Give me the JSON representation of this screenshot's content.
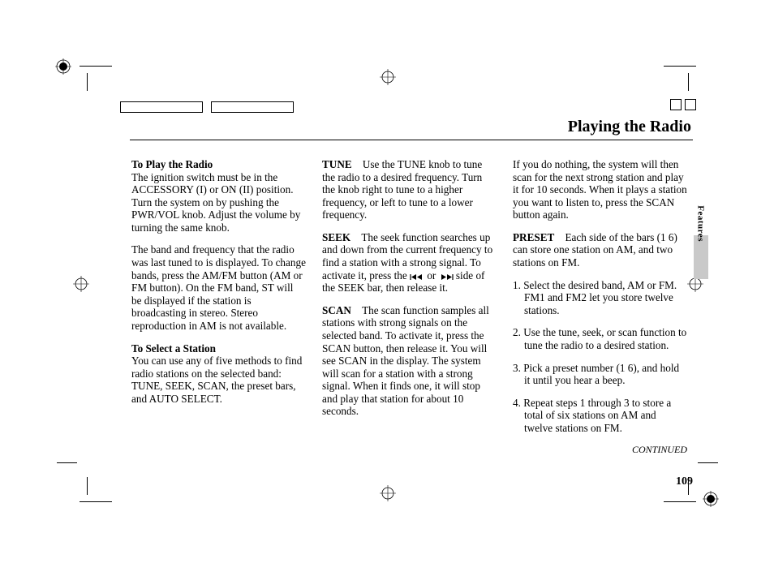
{
  "header": {
    "title": "Playing the Radio"
  },
  "side_tab": {
    "label": "Features"
  },
  "page_number": "109",
  "continued_label": "CONTINUED",
  "col1": {
    "h1": "To Play the Radio",
    "p1": "The ignition switch must be in the ACCESSORY (I) or ON (II) position. Turn the system on by pushing the PWR/VOL knob. Adjust the volume by turning the same knob.",
    "p2": "The band and frequency that the radio was last tuned to is displayed. To change bands, press the AM/FM button (AM or FM button). On the FM band, ST will be displayed if the station is broadcasting in stereo. Stereo reproduction in AM is not available.",
    "h2": "To Select a Station",
    "p3": "You can use any of five methods to find radio stations on the selected band: TUNE, SEEK, SCAN, the preset bars, and AUTO SELECT."
  },
  "col2": {
    "tune_label": "TUNE",
    "tune_body": "Use the TUNE knob to tune the radio to a desired frequency. Turn the knob right to tune to a higher frequency, or left to tune to a lower frequency.",
    "seek_label": "SEEK",
    "seek_body_a": "The seek function searches up and down from the current frequency to find a station with a strong signal. To activate it, press the ",
    "seek_or": " or ",
    "seek_body_b": " side of the SEEK bar, then release it.",
    "scan_label": "SCAN",
    "scan_body": "The scan function samples all stations with strong signals on the selected band. To activate it, press the SCAN button, then release it. You will see SCAN in the display. The system will scan for a station with a strong signal. When it finds one, it will stop and play that station for about 10 seconds."
  },
  "col3": {
    "p1": "If you do nothing, the system will then scan for the next strong station and play it for 10 seconds. When it plays a station you want to listen to, press the SCAN button again.",
    "preset_label": "PRESET",
    "preset_body": "Each side of the bars (1   6) can store one station on AM, and two stations on FM.",
    "li1": "Select the desired band, AM or FM. FM1 and FM2 let you store twelve stations.",
    "li2": "Use the tune, seek, or scan function to tune the radio to a desired station.",
    "li3": "Pick a preset number (1   6), and hold it until you hear a beep.",
    "li4": "Repeat steps 1 through 3 to store a total of six stations on AM and twelve stations on FM."
  },
  "colors": {
    "text": "#000000",
    "background": "#ffffff",
    "tab_fill": "#c9c9c9"
  },
  "typography": {
    "body_font": "Times New Roman",
    "body_size_pt": 10,
    "title_size_pt": 15,
    "title_weight": "bold"
  }
}
